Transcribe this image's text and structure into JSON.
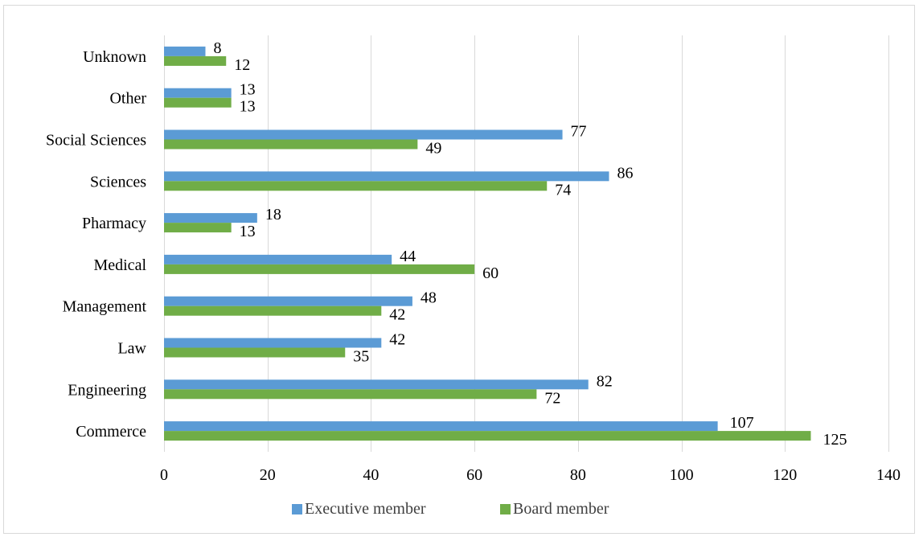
{
  "chart_data": {
    "type": "bar",
    "orientation": "horizontal",
    "categories": [
      "Commerce",
      "Engineering",
      "Law",
      "Management",
      "Medical",
      "Pharmacy",
      "Sciences",
      "Social Sciences",
      "Other",
      "Unknown"
    ],
    "series": [
      {
        "name": "Executive member",
        "color": "#5b9bd5",
        "values": [
          107,
          82,
          42,
          48,
          44,
          18,
          86,
          77,
          13,
          8
        ]
      },
      {
        "name": "Board member",
        "color": "#70ad47",
        "values": [
          125,
          72,
          35,
          42,
          60,
          13,
          74,
          49,
          13,
          12
        ]
      }
    ],
    "xlim": [
      0,
      140
    ],
    "xticks": [
      0,
      20,
      40,
      60,
      80,
      100,
      120,
      140
    ],
    "grid": true,
    "legend": "bottom",
    "data_labels": true
  }
}
